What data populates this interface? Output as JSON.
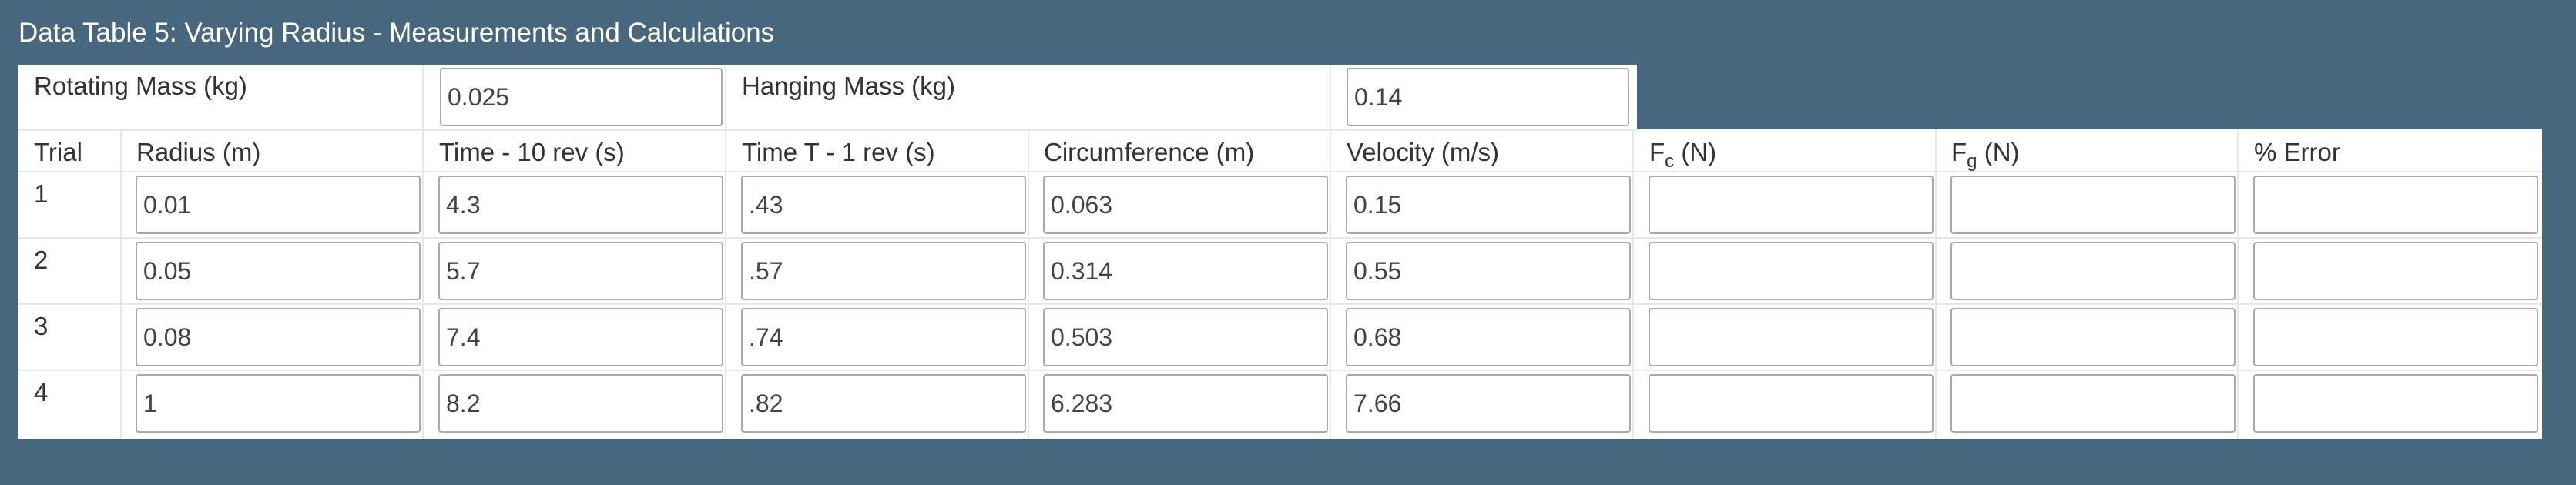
{
  "caption": "Data Table 5: Varying Radius - Measurements and Calculations",
  "mass_row": {
    "rotating_label": "Rotating Mass (kg)",
    "rotating_value": "0.025",
    "hanging_label": "Hanging Mass (kg)",
    "hanging_value": "0.14"
  },
  "headers": {
    "trial": "Trial",
    "radius": "Radius (m)",
    "time10": "Time - 10 rev (s)",
    "time1": "Time T - 1 rev (s)",
    "circumference": "Circumference (m)",
    "velocity": "Velocity (m/s)",
    "fc_main": "F",
    "fc_sub": "c",
    "fc_unit": " (N)",
    "fg_main": "F",
    "fg_sub": "g",
    "fg_unit": " (N)",
    "error": "% Error"
  },
  "trials": [
    {
      "trial": "1",
      "radius": "0.01",
      "time10": "4.3",
      "time1": ".43",
      "circumference": "0.063",
      "velocity": "0.15",
      "fc": "",
      "fg": "",
      "error": ""
    },
    {
      "trial": "2",
      "radius": "0.05",
      "time10": "5.7",
      "time1": ".57",
      "circumference": "0.314",
      "velocity": "0.55",
      "fc": "",
      "fg": "",
      "error": ""
    },
    {
      "trial": "3",
      "radius": "0.08",
      "time10": "7.4",
      "time1": ".74",
      "circumference": "0.503",
      "velocity": "0.68",
      "fc": "",
      "fg": "",
      "error": ""
    },
    {
      "trial": "4",
      "radius": "1",
      "time10": "8.2",
      "time1": ".82",
      "circumference": "6.283",
      "velocity": "7.66",
      "fc": "",
      "fg": "",
      "error": ""
    }
  ]
}
